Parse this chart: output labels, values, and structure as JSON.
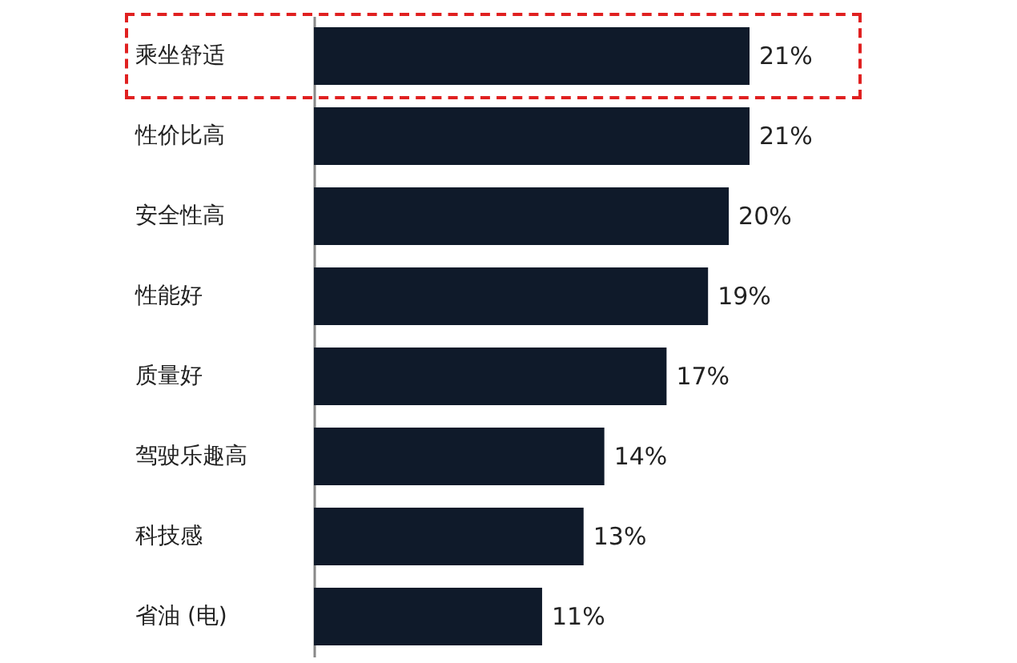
{
  "chart_data": {
    "type": "bar",
    "orientation": "horizontal",
    "categories": [
      "乘坐舒适",
      "性价比高",
      "安全性高",
      "性能好",
      "质量好",
      "驾驶乐趣高",
      "科技感",
      "省油 (电)"
    ],
    "values": [
      21,
      21,
      20,
      19,
      17,
      14,
      13,
      11
    ],
    "value_labels": [
      "21%",
      "21%",
      "20%",
      "19%",
      "17%",
      "14%",
      "13%",
      "11%"
    ],
    "color": "#0f1a2a"
  }
}
